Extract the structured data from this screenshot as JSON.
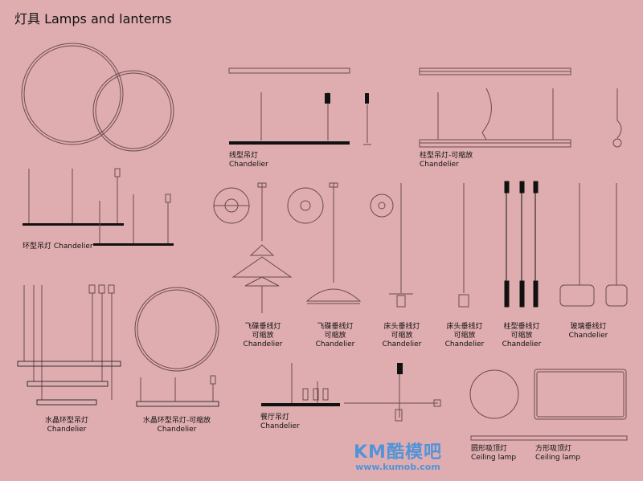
{
  "title": "灯具 Lamps and lanterns",
  "colors": {
    "background": "#dfadb0",
    "line": "#6b4a4d",
    "fixture": "#111111",
    "watermark": "#3a8fe0"
  },
  "labels": {
    "ring": "环型吊灯 Chandelier",
    "linear_cn": "线型吊灯",
    "linear_en": "Chandelier",
    "column_cn": "柱型吊灯-可缩放",
    "column_en": "Chandelier",
    "ufo1_cn": "飞碟垂线灯",
    "ufo1_sub": "可缩放",
    "ufo1_en": "Chandelier",
    "ufo2_cn": "飞碟垂线灯",
    "ufo2_sub": "可缩放",
    "ufo2_en": "Chandelier",
    "bed1_cn": "床头垂线灯",
    "bed1_sub": "可缩放",
    "bed1_en": "Chandelier",
    "bed2_cn": "床头垂线灯",
    "bed2_sub": "可缩放",
    "bed2_en": "Chandelier",
    "pillar_cn": "柱型垂线灯",
    "pillar_sub": "可缩放",
    "pillar_en": "Chandelier",
    "glass_cn": "玻璃垂线灯",
    "glass_en": "Chandelier",
    "crystal1_cn": "水晶环型吊灯",
    "crystal1_en": "Chandelier",
    "crystal2_cn": "水晶环型吊灯-可缩放",
    "crystal2_en": "Chandelier",
    "dining_cn": "餐厅吊灯",
    "dining_en": "Chandelier",
    "ceil_round_cn": "圆形吸顶灯",
    "ceil_round_en": "Ceiling lamp",
    "ceil_square_cn": "方形吸顶灯",
    "ceil_square_en": "Ceiling lamp"
  },
  "watermark": {
    "name": "KM酷模吧",
    "url": "www.kumob.com"
  }
}
